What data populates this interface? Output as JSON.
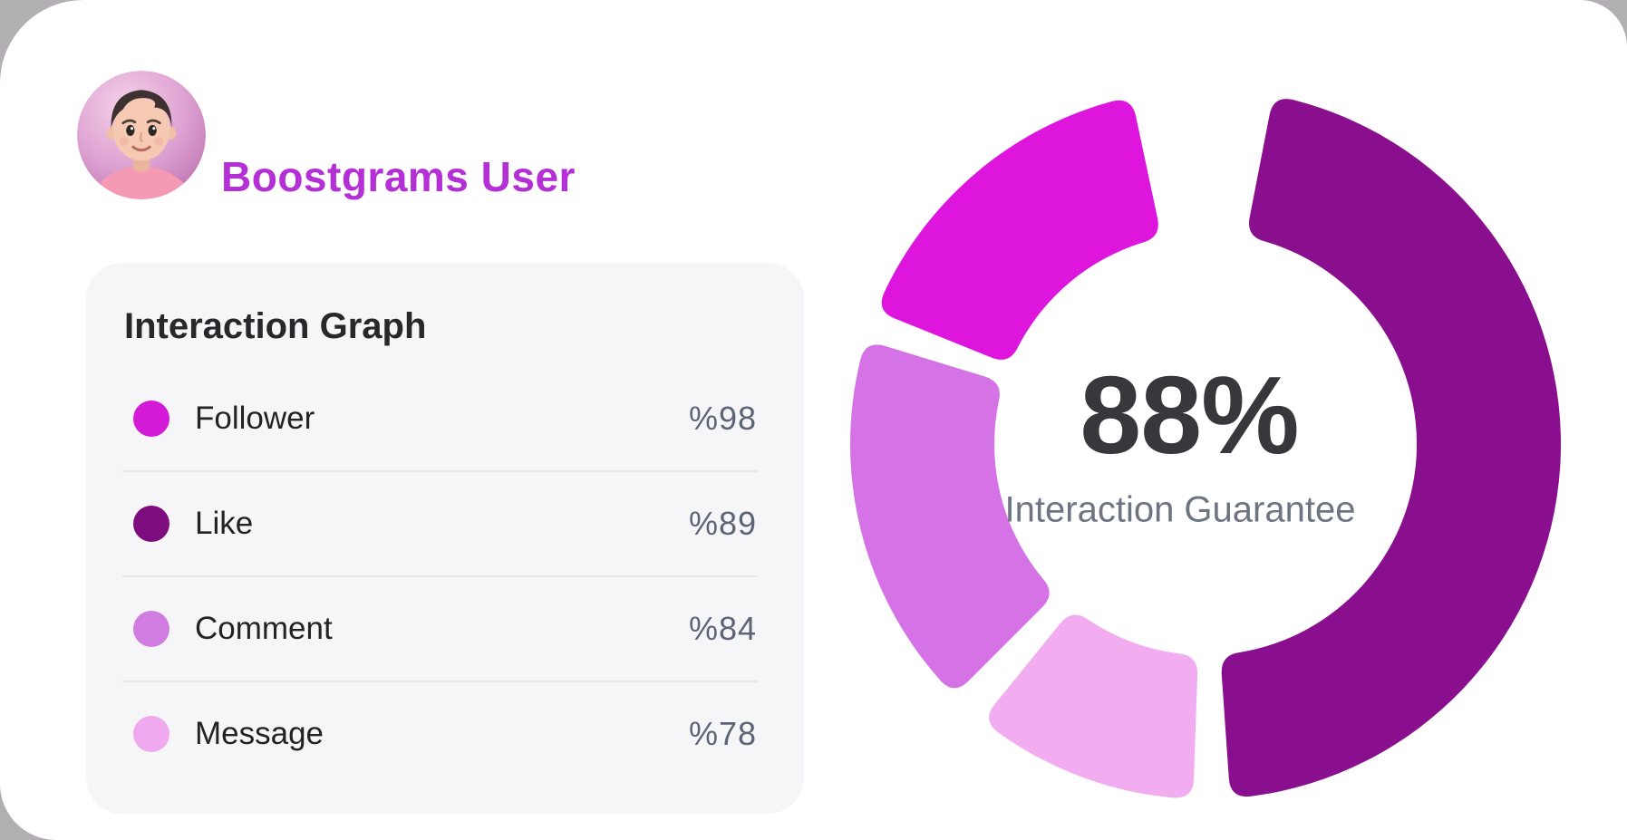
{
  "user": {
    "name": "Boostgrams User",
    "name_color": "#b52fd6",
    "avatar_alt": "3d-person-avatar"
  },
  "legend_card": {
    "title": "Interaction Graph"
  },
  "chart_data": {
    "type": "pie",
    "subtype": "donut",
    "center_value": "88%",
    "center_label": "Interaction Guarantee",
    "legend_position": "left-card",
    "segments": [
      {
        "label": "Follower",
        "value": 98,
        "display": "%98",
        "dot_color": "#d31ad6",
        "arc_color": "#de15dc",
        "arc_start_deg": 292,
        "arc_end_deg": 348
      },
      {
        "label": "Like",
        "value": 89,
        "display": "%89",
        "dot_color": "#7d0d7f",
        "arc_color": "#8a0f8e",
        "arc_start_deg": 11,
        "arc_end_deg": 176
      },
      {
        "label": "Comment",
        "value": 84,
        "display": "%84",
        "dot_color": "#d07de1",
        "arc_color": "#d572e6",
        "arc_start_deg": 225,
        "arc_end_deg": 287
      },
      {
        "label": "Message",
        "value": 78,
        "display": "%78",
        "dot_color": "#f0a8ee",
        "arc_color": "#f2adf0",
        "arc_start_deg": 182,
        "arc_end_deg": 219
      }
    ],
    "colors": {
      "center_value_color": "#37373c",
      "center_label_color": "#6e7482",
      "value_text_color": "#5d6476"
    }
  }
}
